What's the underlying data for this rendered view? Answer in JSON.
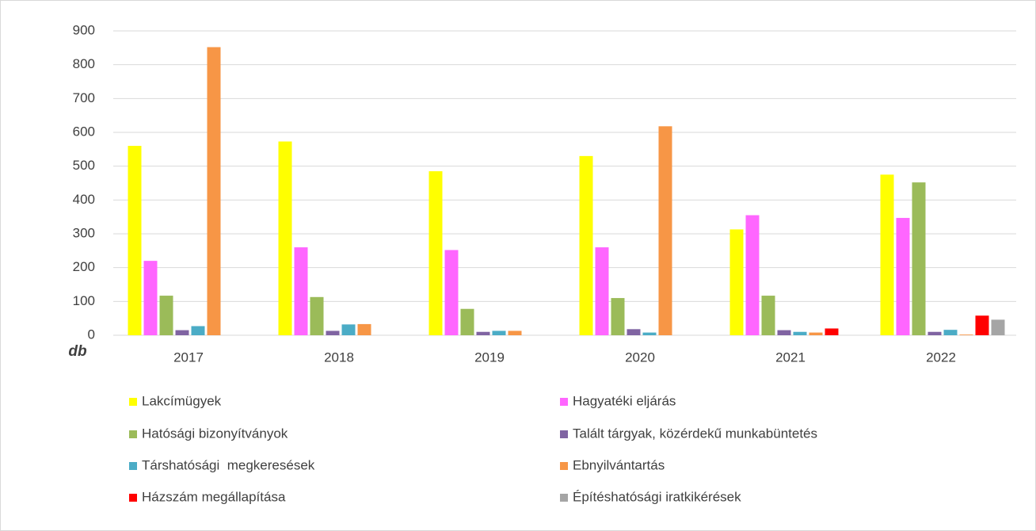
{
  "chart_data": {
    "type": "bar",
    "y_unit_label": "db",
    "categories": [
      "2017",
      "2018",
      "2019",
      "2020",
      "2021",
      "2022"
    ],
    "series": [
      {
        "name": "Lakcímügyek",
        "color": "#ffff00",
        "values": [
          560,
          573,
          485,
          530,
          313,
          475
        ]
      },
      {
        "name": "Hagyatéki eljárás",
        "color": "#ff66ff",
        "values": [
          220,
          260,
          252,
          260,
          355,
          347
        ]
      },
      {
        "name": "Hatósági bizonyítványok",
        "color": "#9bbb59",
        "values": [
          117,
          113,
          78,
          110,
          117,
          452
        ]
      },
      {
        "name": "Talált tárgyak, közérdekű munkabüntetés",
        "color": "#8064a2",
        "values": [
          15,
          13,
          10,
          18,
          15,
          10
        ]
      },
      {
        "name": "Társhatósági  megkeresések",
        "color": "#4bacc6",
        "values": [
          27,
          32,
          13,
          8,
          10,
          16
        ]
      },
      {
        "name": "Ebnyilvántartás",
        "color": "#f79646",
        "values": [
          852,
          33,
          13,
          618,
          8,
          2
        ]
      },
      {
        "name": "Házszám megállapítása",
        "color": "#ff0000",
        "values": [
          null,
          null,
          null,
          null,
          20,
          58
        ]
      },
      {
        "name": "Építéshatósági iratkikérések",
        "color": "#a5a5a5",
        "values": [
          null,
          null,
          null,
          null,
          null,
          46
        ]
      }
    ],
    "ylim": [
      0,
      900
    ],
    "yticks": [
      0,
      100,
      200,
      300,
      400,
      500,
      600,
      700,
      800,
      900
    ],
    "grid": true,
    "legend": "bottom"
  }
}
